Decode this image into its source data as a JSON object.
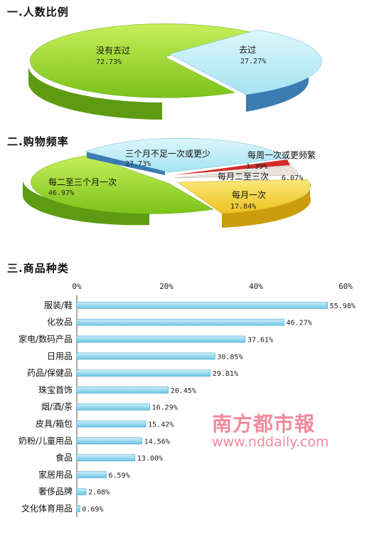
{
  "sections": {
    "s1": "一.人数比例",
    "s2": "二.购物频率",
    "s3": "三.商品种类"
  },
  "chart_data": [
    {
      "type": "pie",
      "title": "一.人数比例",
      "slices": [
        {
          "label": "没有去过",
          "value": 72.73,
          "value_text": "72.73%",
          "color": "#9ad52c"
        },
        {
          "label": "去过",
          "value": 27.27,
          "value_text": "27.27%",
          "color": "#b9ecf6"
        }
      ]
    },
    {
      "type": "pie",
      "title": "二.购物频率",
      "slices": [
        {
          "label": "每二至三个月一次",
          "value": 46.97,
          "value_text": "46.97%",
          "color": "#9ad52c"
        },
        {
          "label": "三个月不足一次或更少",
          "value": 27.73,
          "value_text": "27.73%",
          "color": "#b9ecf6"
        },
        {
          "label": "每周一次或更频繁",
          "value": 1.39,
          "value_text": "1.39%",
          "color": "#d42a2a"
        },
        {
          "label": "每月二至三次",
          "value": 6.07,
          "value_text": "6.07%",
          "color": "#e8e4dc"
        },
        {
          "label": "每月一次",
          "value": 17.84,
          "value_text": "17.84%",
          "color": "#f5d43c"
        }
      ]
    },
    {
      "type": "bar",
      "orientation": "horizontal",
      "title": "三.商品种类",
      "xlim": [
        0,
        60
      ],
      "ticks": [
        "0%",
        "20%",
        "40%",
        "60%"
      ],
      "categories": [
        "服装/鞋",
        "化妆品",
        "家电/数码产品",
        "日用品",
        "药品/保健品",
        "珠宝首饰",
        "烟/酒/茶",
        "皮具/箱包",
        "奶粉/儿童用品",
        "食品",
        "家居用品",
        "奢侈品牌",
        "文化体育用品"
      ],
      "values": [
        55.98,
        46.27,
        37.61,
        30.85,
        29.81,
        20.45,
        16.29,
        15.42,
        14.56,
        13.0,
        6.59,
        2.08,
        0.69
      ],
      "value_labels": [
        "55.98%",
        "46.27%",
        "37.61%",
        "30.85%",
        "29.81%",
        "20.45%",
        "16.29%",
        "15.42%",
        "14.56%",
        "13.00%",
        "6.59%",
        "2.08%",
        "0.69%"
      ],
      "bar_color": "#8fd6ee"
    }
  ],
  "watermark": {
    "logo_text": "南方都市報",
    "url": "www.nddaily.com",
    "color": "#f08a9c"
  }
}
